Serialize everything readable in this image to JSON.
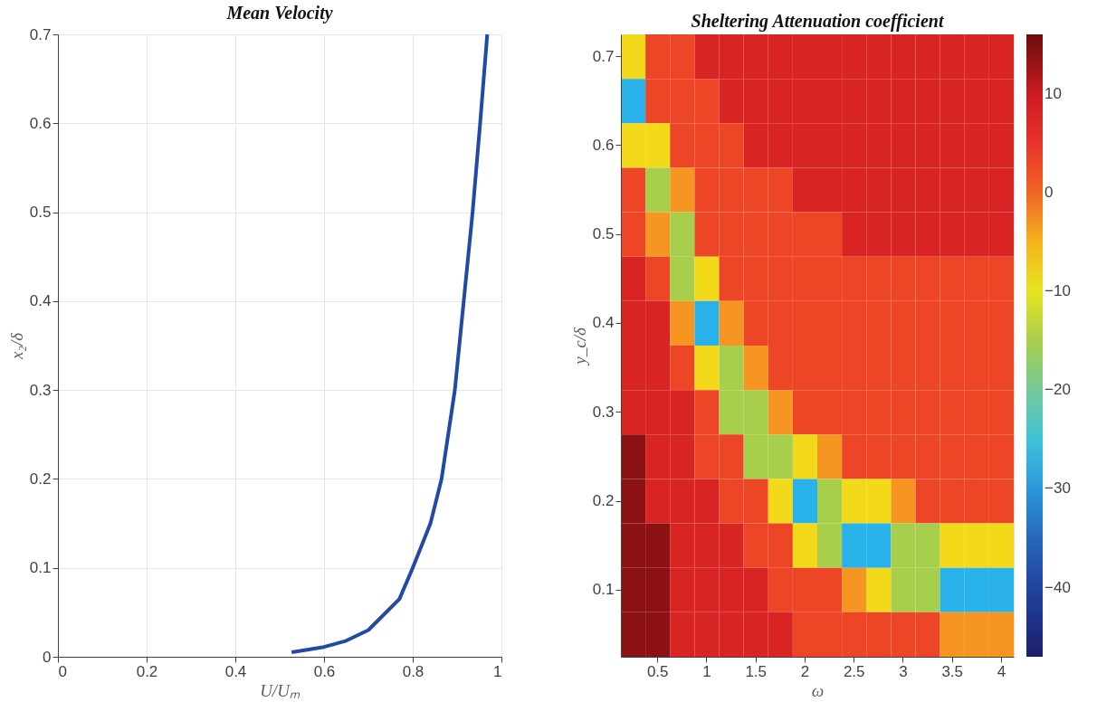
{
  "chart_data": [
    {
      "type": "line",
      "title": "Mean Velocity",
      "xlabel": "U/Uₘ",
      "ylabel": "x₂/δ",
      "x": [
        0.527,
        0.6,
        0.65,
        0.7,
        0.77,
        0.8,
        0.84,
        0.865,
        0.895,
        0.915,
        0.935,
        0.952,
        0.968
      ],
      "series": [
        {
          "color": "#2249a5",
          "values": [
            0.005,
            0.011,
            0.018,
            0.03,
            0.065,
            0.1,
            0.15,
            0.2,
            0.3,
            0.4,
            0.5,
            0.6,
            0.7
          ]
        }
      ],
      "xlim": [
        0,
        1
      ],
      "xticks": [
        0,
        0.2,
        0.4,
        0.6,
        0.8,
        1
      ],
      "ylim": [
        0,
        0.7
      ],
      "yticks": [
        0,
        0.1,
        0.2,
        0.3,
        0.4,
        0.5,
        0.6,
        0.7
      ],
      "grid": true,
      "marker": "none",
      "line_style": "solid"
    },
    {
      "type": "heatmap",
      "title": "Sheltering Attenuation coefficient",
      "xlabel": "ω",
      "ylabel": "y_c/δ",
      "categories": [
        null,
        "0.5",
        null,
        "1",
        null,
        "1.5",
        null,
        "2",
        null,
        "2.5",
        null,
        "3",
        null,
        "3.5",
        null,
        "4"
      ],
      "y_categories": [
        "0.7",
        null,
        "0.6",
        null,
        "0.5",
        null,
        "0.4",
        null,
        "0.3",
        null,
        "0.2",
        null,
        "0.1",
        null
      ],
      "cells": [
        [
          -8,
          3,
          3,
          8,
          8,
          8,
          8,
          8,
          8,
          8,
          8,
          8,
          8,
          8,
          8,
          8
        ],
        [
          -28,
          3,
          3,
          3,
          8,
          8,
          8,
          8,
          8,
          8,
          8,
          8,
          8,
          8,
          8,
          8
        ],
        [
          -8,
          -8,
          3,
          3,
          3,
          8,
          8,
          8,
          8,
          8,
          8,
          8,
          8,
          8,
          8,
          8
        ],
        [
          3,
          -15,
          -3,
          3,
          3,
          3,
          3,
          8,
          8,
          8,
          8,
          8,
          8,
          8,
          8,
          8
        ],
        [
          3,
          -3,
          -15,
          3,
          3,
          3,
          3,
          3,
          3,
          8,
          8,
          8,
          8,
          8,
          8,
          8
        ],
        [
          8,
          3,
          -15,
          -8,
          3,
          3,
          3,
          3,
          3,
          3,
          3,
          3,
          3,
          3,
          3,
          3
        ],
        [
          8,
          8,
          -3,
          -28,
          -3,
          3,
          3,
          3,
          3,
          3,
          3,
          3,
          3,
          3,
          3,
          3
        ],
        [
          8,
          8,
          3,
          -8,
          -15,
          -3,
          3,
          3,
          3,
          3,
          3,
          3,
          3,
          3,
          3,
          3
        ],
        [
          8,
          8,
          8,
          3,
          -15,
          -15,
          -3,
          3,
          3,
          3,
          3,
          3,
          3,
          3,
          3,
          3
        ],
        [
          14,
          8,
          8,
          3,
          3,
          -15,
          -15,
          -8,
          -3,
          3,
          3,
          3,
          3,
          3,
          3,
          3
        ],
        [
          14,
          8,
          8,
          8,
          3,
          3,
          -8,
          -28,
          -15,
          -8,
          -8,
          -3,
          3,
          3,
          3,
          3
        ],
        [
          14,
          14,
          8,
          8,
          8,
          3,
          3,
          -8,
          -15,
          -28,
          -28,
          -15,
          -15,
          -8,
          -8,
          -8
        ],
        [
          14,
          14,
          8,
          8,
          8,
          8,
          3,
          3,
          3,
          -3,
          -8,
          -15,
          -15,
          -28,
          -28,
          -28
        ],
        [
          14,
          14,
          8,
          8,
          8,
          8,
          8,
          3,
          3,
          3,
          3,
          3,
          3,
          -3,
          -3,
          -3
        ]
      ],
      "clim": [
        -47,
        16
      ],
      "cticks": [
        -40,
        -30,
        -20,
        -10,
        0,
        10
      ],
      "grid": false
    }
  ]
}
